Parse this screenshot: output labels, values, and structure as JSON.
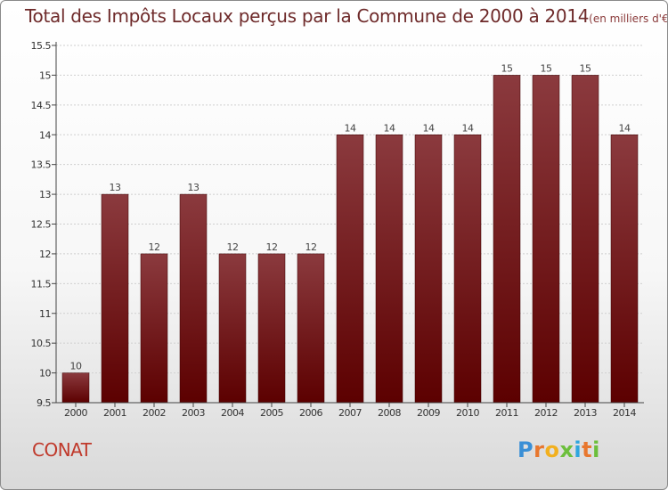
{
  "title": "Total des Impôts Locaux perçus par la Commune de 2000 à 2014",
  "unit_note": "(en milliers d'€)",
  "commune": "CONAT",
  "logo": {
    "letters": [
      "P",
      "r",
      "o",
      "x",
      "i",
      "t",
      "i"
    ],
    "colors": [
      "#3a8fd6",
      "#e8772e",
      "#f2b01e",
      "#6cbf3c",
      "#2fa6de",
      "#e8772e",
      "#6cbf3c"
    ]
  },
  "colors": {
    "bar_top": "#8b3a3e",
    "bar_bottom": "#5c0000",
    "axis": "#444444",
    "grid": "#cfcfcf"
  },
  "chart_data": {
    "type": "bar",
    "title": "Total des Impôts Locaux perçus par la Commune de 2000 à 2014",
    "xlabel": "",
    "ylabel": "",
    "categories": [
      "2000",
      "2001",
      "2002",
      "2003",
      "2004",
      "2005",
      "2006",
      "2007",
      "2008",
      "2009",
      "2010",
      "2011",
      "2012",
      "2013",
      "2014"
    ],
    "values": [
      10,
      13,
      12,
      13,
      12,
      12,
      12,
      14,
      14,
      14,
      14,
      15,
      15,
      15,
      14
    ],
    "value_labels": [
      "10",
      "13",
      "12",
      "13",
      "12",
      "12",
      "12",
      "14",
      "14",
      "14",
      "14",
      "15",
      "15",
      "15",
      "14"
    ],
    "ylim": [
      9.5,
      15.5
    ],
    "yticks": [
      9.5,
      10,
      10.5,
      11,
      11.5,
      12,
      12.5,
      13,
      13.5,
      14,
      14.5,
      15,
      15.5
    ],
    "ytick_labels": [
      "9.5",
      "10",
      "10.5",
      "11",
      "11.5",
      "12",
      "12.5",
      "13",
      "13.5",
      "14",
      "14.5",
      "15",
      "15.5"
    ],
    "grid": true
  }
}
